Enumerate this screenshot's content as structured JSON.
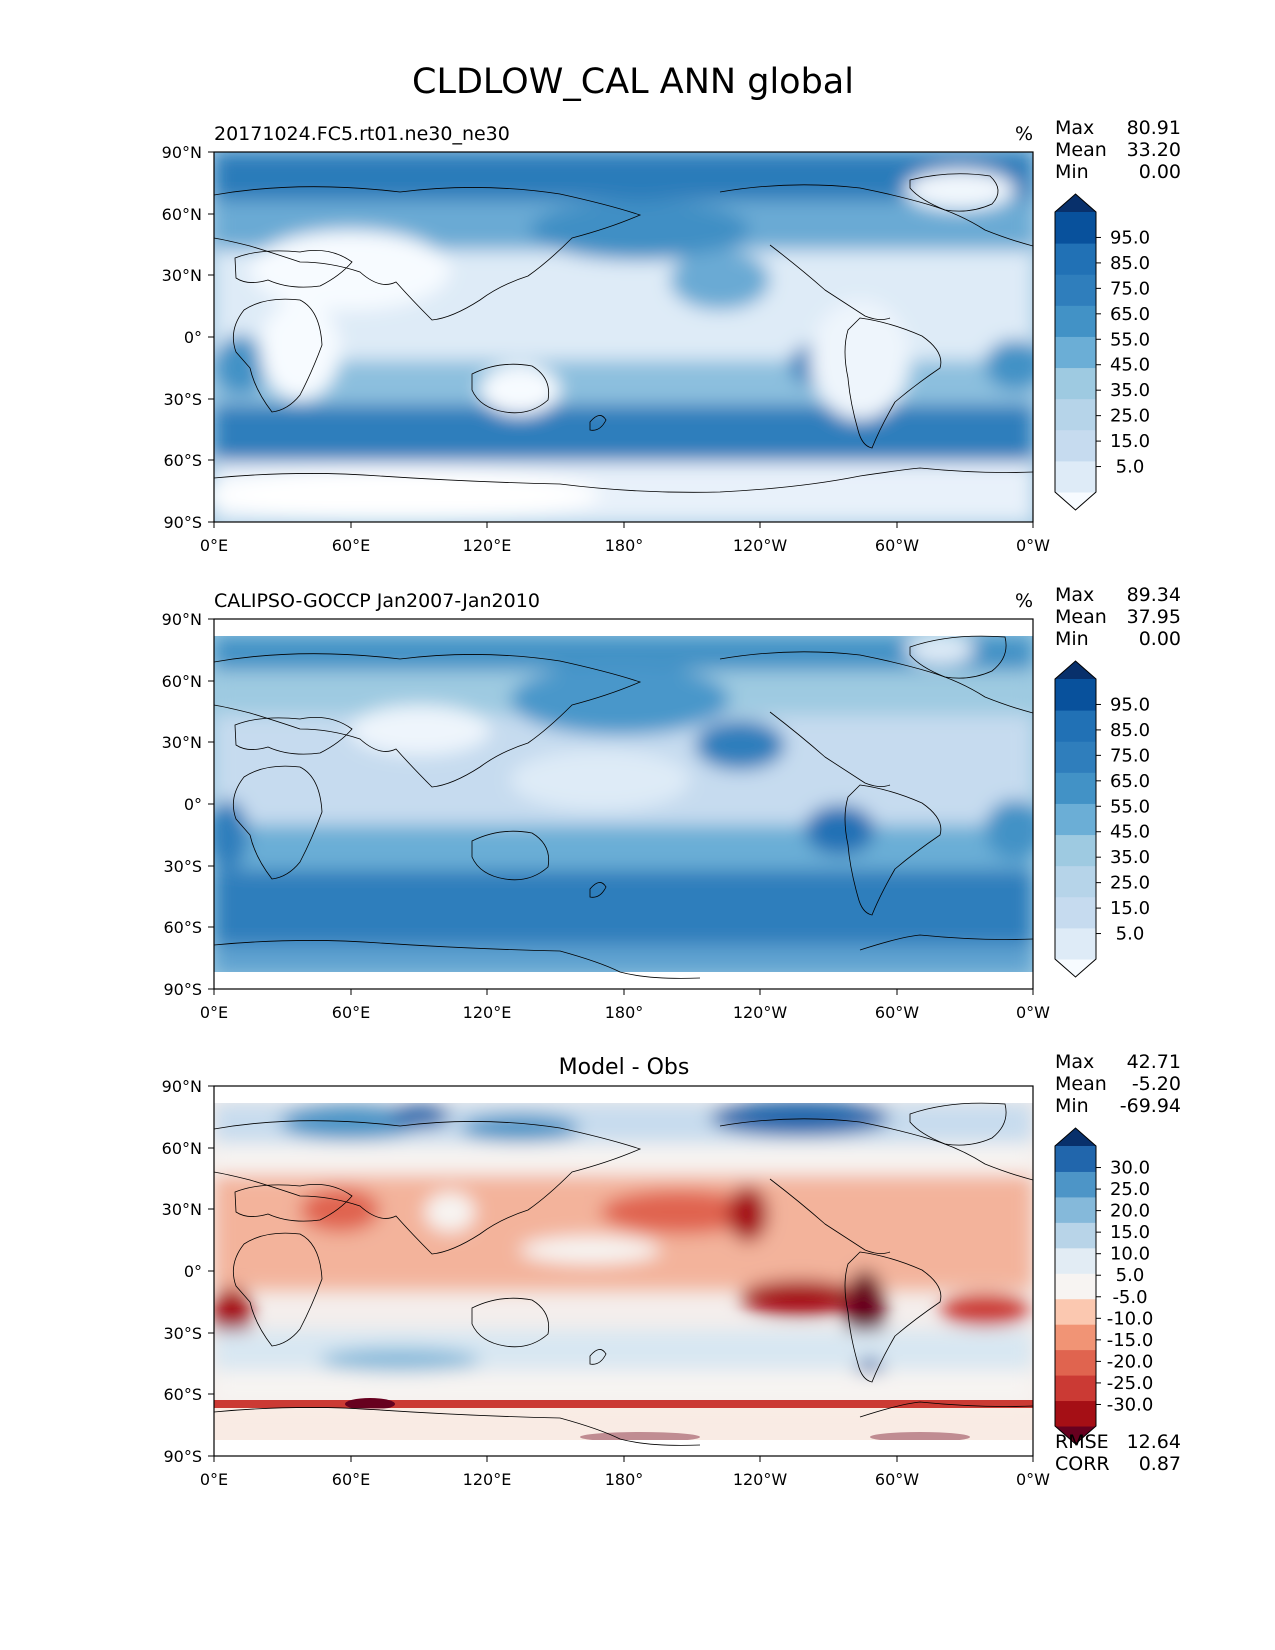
{
  "figure_title": "CLDLOW_CAL ANN global",
  "chart_data": [
    {
      "type": "heatmap",
      "title": "20171024.FC5.rt01.ne30_ne30",
      "units": "%",
      "stats": [
        {
          "label": "Max",
          "value": "80.91"
        },
        {
          "label": "Mean",
          "value": "33.20"
        },
        {
          "label": "Min",
          "value": "0.00"
        }
      ],
      "colorbar_labels": [
        "95.0",
        "85.0",
        "75.0",
        "65.0",
        "55.0",
        "45.0",
        "35.0",
        "25.0",
        "15.0",
        "5.0"
      ],
      "colors": [
        "#f7fbff",
        "#deebf7",
        "#c6dbef",
        "#b6d4e9",
        "#9ecae1",
        "#6baed6",
        "#4292c6",
        "#2f7ebc",
        "#2171b5",
        "#08519c",
        "#08306b"
      ],
      "x_ticks": [
        "0°E",
        "60°E",
        "120°E",
        "180°",
        "120°W",
        "60°W",
        "0°W"
      ],
      "y_ticks": [
        "90°N",
        "60°N",
        "30°N",
        "0°",
        "30°S",
        "60°S",
        "90°S"
      ],
      "xlim": [
        0,
        360
      ],
      "ylim": [
        -90,
        90
      ],
      "footer": []
    },
    {
      "type": "heatmap",
      "title": "CALIPSO-GOCCP Jan2007-Jan2010",
      "units": "%",
      "stats": [
        {
          "label": "Max",
          "value": "89.34"
        },
        {
          "label": "Mean",
          "value": "37.95"
        },
        {
          "label": "Min",
          "value": "0.00"
        }
      ],
      "colorbar_labels": [
        "95.0",
        "85.0",
        "75.0",
        "65.0",
        "55.0",
        "45.0",
        "35.0",
        "25.0",
        "15.0",
        "5.0"
      ],
      "colors": [
        "#f7fbff",
        "#deebf7",
        "#c6dbef",
        "#b6d4e9",
        "#9ecae1",
        "#6baed6",
        "#4292c6",
        "#2f7ebc",
        "#2171b5",
        "#08519c",
        "#08306b"
      ],
      "x_ticks": [
        "0°E",
        "60°E",
        "120°E",
        "180°",
        "120°W",
        "60°W",
        "0°W"
      ],
      "y_ticks": [
        "90°N",
        "60°N",
        "30°N",
        "0°",
        "30°S",
        "60°S",
        "90°S"
      ],
      "xlim": [
        0,
        360
      ],
      "ylim": [
        -90,
        90
      ],
      "footer": []
    },
    {
      "type": "heatmap",
      "title": "Model - Obs",
      "units": "",
      "stats": [
        {
          "label": "Max",
          "value": "42.71"
        },
        {
          "label": "Mean",
          "value": "-5.20"
        },
        {
          "label": "Min",
          "value": "-69.94"
        }
      ],
      "colorbar_labels": [
        "30.0",
        "25.0",
        "20.0",
        "15.0",
        "10.0",
        "5.0",
        "-5.0",
        "-10.0",
        "-15.0",
        "-20.0",
        "-25.0",
        "-30.0"
      ],
      "colors": [
        "#67001f",
        "#a50f15",
        "#cb3a34",
        "#e0644f",
        "#f19475",
        "#fbc8b0",
        "#f7f4f2",
        "#e2ecf4",
        "#b8d4e8",
        "#85b9da",
        "#4d95c7",
        "#2166ac",
        "#08306b"
      ],
      "x_ticks": [
        "0°E",
        "60°E",
        "120°E",
        "180°",
        "120°W",
        "60°W",
        "0°W"
      ],
      "y_ticks": [
        "90°N",
        "60°N",
        "30°N",
        "0°",
        "30°S",
        "60°S",
        "90°S"
      ],
      "xlim": [
        0,
        360
      ],
      "ylim": [
        -90,
        90
      ],
      "footer": [
        {
          "label": "RMSE",
          "value": "12.64"
        },
        {
          "label": "CORR",
          "value": "0.87"
        }
      ]
    }
  ]
}
